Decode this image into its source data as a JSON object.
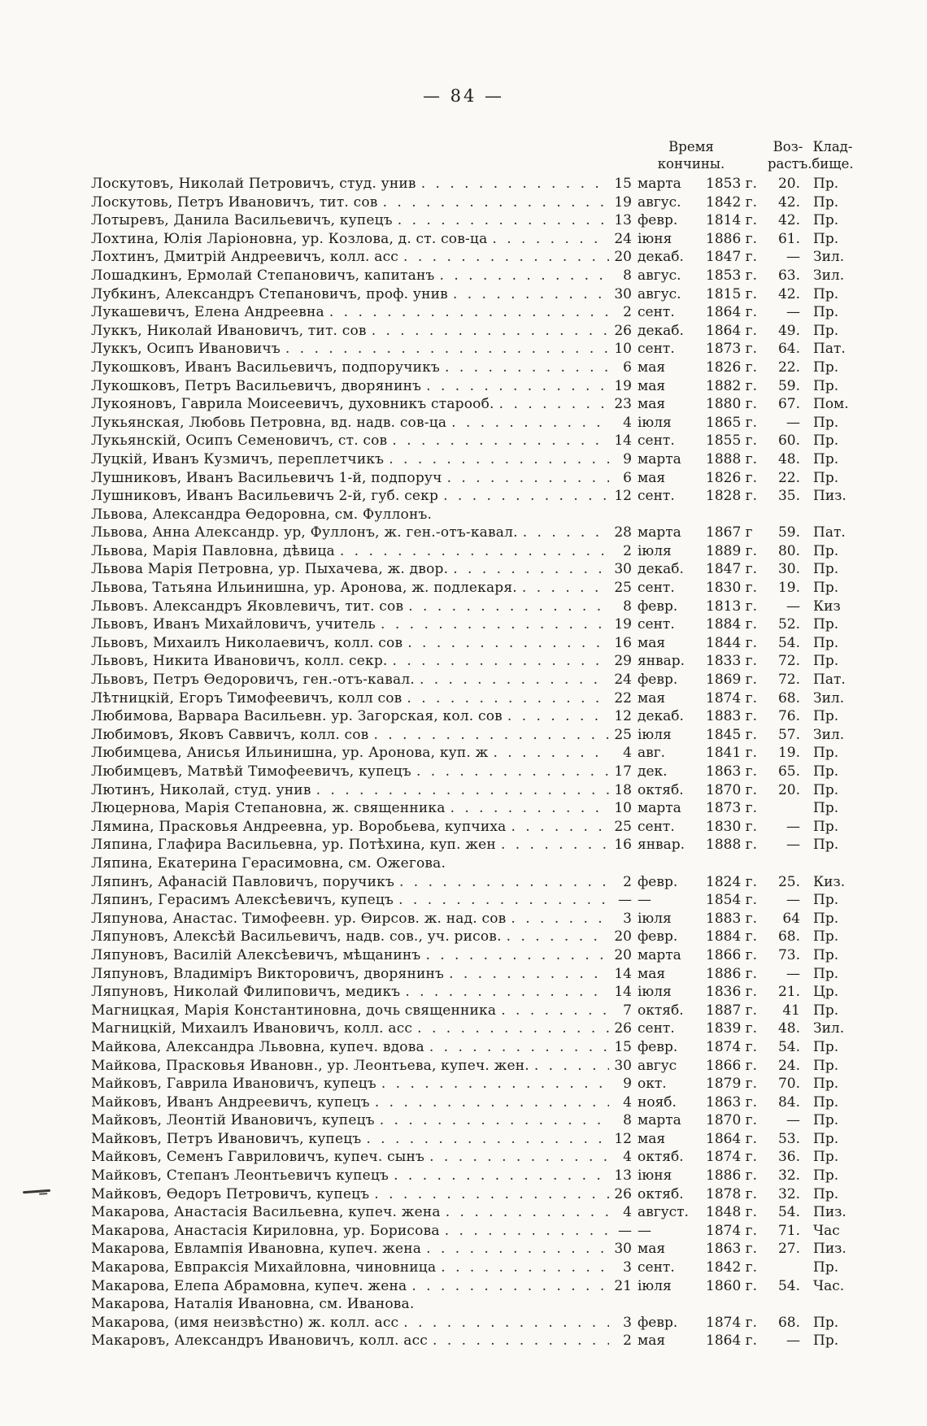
{
  "page": {
    "number_display": "— 84 —"
  },
  "table": {
    "columns": {
      "time_l1": "Время",
      "time_l2": "кончины.",
      "age_l1": "Воз-",
      "age_l2": "растъ.",
      "cem_l1": "Клад-",
      "cem_l2": "бище."
    },
    "rows": [
      {
        "name": "Лоскутовъ, Николай Петровичъ, студ. унив",
        "day": "15",
        "month": "марта",
        "year": "1853 г.",
        "age": "20.",
        "cem": "Пр."
      },
      {
        "name": "Лоскутовь, Петръ Ивановичъ, тит. сов",
        "day": "19",
        "month": "авгус.",
        "year": "1842 г.",
        "age": "42.",
        "cem": "Пр."
      },
      {
        "name": "Лотыревъ, Данила Васильевичъ, купецъ",
        "day": "13",
        "month": "февр.",
        "year": "1814 г.",
        "age": "42.",
        "cem": "Пр."
      },
      {
        "name": "Лохтина, Юлія Ларіоновна, ур. Козлова, д. ст. сов-ца",
        "day": "24",
        "month": "іюня",
        "year": "1886 г.",
        "age": "61.",
        "cem": "Пр."
      },
      {
        "name": "Лохтинъ, Дмитрій Андреевичъ, колл. асс",
        "day": "20",
        "month": "декаб.",
        "year": "1847 г.",
        "age": "—",
        "cem": "Зил."
      },
      {
        "name": "Лошадкинъ, Ермолай Степановичъ, капитанъ",
        "day": "8",
        "month": "авгус.",
        "year": "1853 г.",
        "age": "63.",
        "cem": "Зил."
      },
      {
        "name": "Лубкинъ, Александръ Степановичъ, проф. унив",
        "day": "30",
        "month": "авгус.",
        "year": "1815 г.",
        "age": "42.",
        "cem": "Пр."
      },
      {
        "name": "Лукашевичъ, Елена Андреевна",
        "day": "2",
        "month": "сент.",
        "year": "1864 г.",
        "age": "—",
        "cem": "Пр."
      },
      {
        "name": "Луккъ, Николай Ивановичъ, тит. сов",
        "day": "26",
        "month": "декаб.",
        "year": "1864 г.",
        "age": "49.",
        "cem": "Пр."
      },
      {
        "name": "Луккъ, Осипъ Ивановичъ",
        "day": "10",
        "month": "сент.",
        "year": "1873 г.",
        "age": "64.",
        "cem": "Пат."
      },
      {
        "name": "Лукошковъ, Иванъ Васильевичъ, подпоручикъ",
        "day": "6",
        "month": "мая",
        "year": "1826 г.",
        "age": "22.",
        "cem": "Пр."
      },
      {
        "name": "Лукошковъ, Петръ Васильевичъ, дворянинъ",
        "day": "19",
        "month": "мая",
        "year": "1882 г.",
        "age": "59.",
        "cem": "Пр."
      },
      {
        "name": "Лукояновъ, Гаврила Моисеевичъ, духовникъ старооб.",
        "day": "23",
        "month": "мая",
        "year": "1880 г.",
        "age": "67.",
        "cem": "Пом."
      },
      {
        "name": "Лукьянская, Любовь Петровна, вд. надв. сов-ца",
        "day": "4",
        "month": "іюля",
        "year": "1865 г.",
        "age": "—",
        "cem": "Пр."
      },
      {
        "name": "Лукьянскій, Осипъ Семеновичъ, ст. сов",
        "day": "14",
        "month": "сент.",
        "year": "1855 г.",
        "age": "60.",
        "cem": "Пр."
      },
      {
        "name": "Луцкій, Иванъ Кузмичъ, переплетчикъ",
        "day": "9",
        "month": "марта",
        "year": "1888 г.",
        "age": "48.",
        "cem": "Пр."
      },
      {
        "name": "Лушниковъ, Иванъ Васильевичъ 1-й, подпоруч",
        "day": "6",
        "month": "мая",
        "year": "1826 г.",
        "age": "22.",
        "cem": "Пр."
      },
      {
        "name": "Лушниковъ, Иванъ Васильевичъ 2-й, губ. секр",
        "day": "12",
        "month": "сент.",
        "year": "1828 г.",
        "age": "35.",
        "cem": "Пиз."
      },
      {
        "name": "Львова, Александра Ѳедоровна, см. Фуллонъ.",
        "ref": true
      },
      {
        "name": "Львова, Анна Александр. ур, Фуллонъ, ж. ген.-отъ-кавал.",
        "day": "28",
        "month": "марта",
        "year": "1867 г",
        "age": "59.",
        "cem": "Пат."
      },
      {
        "name": "Львова, Марія Павловна, дѣвица",
        "day": "2",
        "month": "іюля",
        "year": "1889 г.",
        "age": "80.",
        "cem": "Пр."
      },
      {
        "name": "Львова Марія Петровна, ур. Пыхачева, ж. двор.",
        "day": "30",
        "month": "декаб.",
        "year": "1847 г.",
        "age": "30.",
        "cem": "Пр."
      },
      {
        "name": "Львова, Татьяна Ильинишна, ур. Аронова, ж. подлекаря.",
        "day": "25",
        "month": "сент.",
        "year": "1830 г.",
        "age": "19.",
        "cem": "Пр."
      },
      {
        "name": "Львовъ. Александръ Яковлевичъ, тит. сов",
        "day": "8",
        "month": "февр.",
        "year": "1813 г.",
        "age": "—",
        "cem": "Киз"
      },
      {
        "name": "Львовъ, Иванъ Михайловичъ, учитель",
        "day": "19",
        "month": "сент.",
        "year": "1884 г.",
        "age": "52.",
        "cem": "Пр."
      },
      {
        "name": "Львовъ, Михаилъ Николаевичъ, колл. сов",
        "day": "16",
        "month": "мая",
        "year": "1844 г.",
        "age": "54.",
        "cem": "Пр."
      },
      {
        "name": "Львовъ, Никита Ивановичъ, колл. секр.",
        "day": "29",
        "month": "январ.",
        "year": "1833 г.",
        "age": "72.",
        "cem": "Пр."
      },
      {
        "name": "Львовъ, Петръ Ѳедоровичъ, ген.-отъ-кавал.",
        "day": "24",
        "month": "февр.",
        "year": "1869 г.",
        "age": "72.",
        "cem": "Пат."
      },
      {
        "name": "Лѣтницкій, Егоръ Тимофеевичъ, колл сов",
        "day": "22",
        "month": "мая",
        "year": "1874 г.",
        "age": "68.",
        "cem": "Зил."
      },
      {
        "name": "Любимова, Варвара Васильевн. ур. Загорская, кол. сов",
        "day": "12",
        "month": "декаб.",
        "year": "1883 г.",
        "age": "76.",
        "cem": "Пр."
      },
      {
        "name": "Любимовъ, Яковъ Саввичъ, колл. сов",
        "day": "25",
        "month": "іюля",
        "year": "1845 г.",
        "age": "57.",
        "cem": "Зил."
      },
      {
        "name": "Любимцева, Анисья Ильинишна, ур. Аронова, куп. ж",
        "day": "4",
        "month": "авг.",
        "year": "1841 г.",
        "age": "19.",
        "cem": "Пр."
      },
      {
        "name": "Любимцевъ, Матвѣй Тимофеевичъ, купецъ",
        "day": "17",
        "month": "дек.",
        "year": "1863 г.",
        "age": "65.",
        "cem": "Пр."
      },
      {
        "name": "Лютинъ, Николай, студ. унив",
        "day": "18",
        "month": "октяб.",
        "year": "1870 г.",
        "age": "20.",
        "cem": "Пр."
      },
      {
        "name": "Люцернова, Марія Степановна, ж. священника",
        "day": "10",
        "month": "марта",
        "year": "1873 г.",
        "age": "",
        "cem": "Пр."
      },
      {
        "name": "Лямина, Прасковья Андреевна, ур. Воробьева, купчиха",
        "day": "25",
        "month": "сент.",
        "year": "1830 г.",
        "age": "—",
        "cem": "Пр."
      },
      {
        "name": "Ляпина, Глафира Васильевна, ур. Потѣхина, куп. жен",
        "day": "16",
        "month": "январ.",
        "year": "1888 г.",
        "age": "—",
        "cem": "Пр."
      },
      {
        "name": "Ляпина, Екатерина Герасимовна, см. Ожегова.",
        "ref": true
      },
      {
        "name": "Ляпинъ, Афанасій Павловичъ, поручикъ",
        "day": "2",
        "month": "февр.",
        "year": "1824 г.",
        "age": "25.",
        "cem": "Киз."
      },
      {
        "name": "Ляпинъ, Герасимъ Алексѣевичъ, купецъ",
        "day": "—",
        "month": "—",
        "year": "1854 г.",
        "age": "—",
        "cem": "Пр."
      },
      {
        "name": "Ляпунова, Анастас. Тимофеевн. ур. Ѳирсов. ж. над. сов",
        "day": "3",
        "month": "іюля",
        "year": "1883 г.",
        "age": "64",
        "cem": "Пр."
      },
      {
        "name": "Ляпуновъ, Алексѣй Васильевичъ, надв. сов., уч. рисов.",
        "day": "20",
        "month": "февр.",
        "year": "1884 г.",
        "age": "68.",
        "cem": "Пр."
      },
      {
        "name": "Ляпуновъ, Василій Алексѣевичъ, мѣщанинъ",
        "day": "20",
        "month": "марта",
        "year": "1866 г.",
        "age": "73.",
        "cem": "Пр."
      },
      {
        "name": "Ляпуновъ, Владиміръ Викторовичъ, дворянинъ",
        "day": "14",
        "month": "мая",
        "year": "1886 г.",
        "age": "—",
        "cem": "Пр."
      },
      {
        "name": "Ляпуновъ, Николай Филиповичъ, медикъ",
        "day": "14",
        "month": "іюля",
        "year": "1836 г.",
        "age": "21.",
        "cem": "Цр."
      },
      {
        "name": "Магницкая, Марія Константиновна, дочь священника",
        "day": "7",
        "month": "октяб.",
        "year": "1887 г.",
        "age": "41",
        "cem": "Пр."
      },
      {
        "name": "Магницкій, Михаилъ Ивановичъ, колл. асс",
        "day": "26",
        "month": "сент.",
        "year": "1839 г.",
        "age": "48.",
        "cem": "Зил."
      },
      {
        "name": "Майкова, Александра Львовна, купеч. вдова",
        "day": "15",
        "month": "февр.",
        "year": "1874 г.",
        "age": "54.",
        "cem": "Пр."
      },
      {
        "name": "Майкова, Прасковья Ивановн., ур. Леонтьева, купеч. жен.",
        "day": "30",
        "month": "авгус",
        "year": "1866 г.",
        "age": "24.",
        "cem": "Пр."
      },
      {
        "name": "Майковъ, Гаврила Ивановичъ, купецъ",
        "day": "9",
        "month": "окт.",
        "year": "1879 г.",
        "age": "70.",
        "cem": "Пр."
      },
      {
        "name": "Майковъ, Иванъ Андреевичъ, купецъ",
        "day": "4",
        "month": "нояб.",
        "year": "1863 г.",
        "age": "84.",
        "cem": "Пр."
      },
      {
        "name": "Майковъ, Леонтій Ивановичъ, купецъ",
        "day": "8",
        "month": "марта",
        "year": "1870 г.",
        "age": "—",
        "cem": "Пр."
      },
      {
        "name": "Майковъ, Петръ Ивановичъ, купецъ",
        "day": "12",
        "month": "мая",
        "year": "1864 г.",
        "age": "53.",
        "cem": "Пр."
      },
      {
        "name": "Майковъ, Семенъ Гавриловичъ, купеч. сынъ",
        "day": "4",
        "month": "октяб.",
        "year": "1874 г.",
        "age": "36.",
        "cem": "Пр."
      },
      {
        "name": "Майковъ, Степанъ Леонтьевичъ купецъ",
        "day": "13",
        "month": "іюня",
        "year": "1886 г.",
        "age": "32.",
        "cem": "Пр."
      },
      {
        "name": "Майковъ, Ѳедоръ Петровичъ, купецъ",
        "day": "26",
        "month": "октяб.",
        "year": "1878 г.",
        "age": "32.",
        "cem": "Пр."
      },
      {
        "name": "Макарова, Анастасія Васильевна, купеч. жена",
        "day": "4",
        "month": "август.",
        "year": "1848 г.",
        "age": "54.",
        "cem": "Пиз."
      },
      {
        "name": "Макарова, Анастасія Кириловна, ур. Борисова",
        "day": "—",
        "month": "—",
        "year": "1874 г.",
        "age": "71.",
        "cem": "Час"
      },
      {
        "name": "Макарова, Евлампія Ивановна, купеч. жена",
        "day": "30",
        "month": "мая",
        "year": "1863 г.",
        "age": "27.",
        "cem": "Пиз."
      },
      {
        "name": "Макарова, Евпраксія Михайловна, чиновница",
        "day": "3",
        "month": "сент.",
        "year": "1842 г.",
        "age": "",
        "cem": "Пр."
      },
      {
        "name": "Макарова, Елепа Абрамовна, купеч. жена",
        "day": "21",
        "month": "іюля",
        "year": "1860 г.",
        "age": "54.",
        "cem": "Час."
      },
      {
        "name": "Макарова, Наталія Ивановна, см. Иванова.",
        "ref": true
      },
      {
        "name": "Макарова, (имя неизвѣстно) ж. колл. асс",
        "day": "3",
        "month": "февр.",
        "year": "1874 г.",
        "age": "68.",
        "cem": "Пр."
      },
      {
        "name": "Макаровъ, Александръ Ивановичъ, колл. асс",
        "day": "2",
        "month": "мая",
        "year": "1864 г.",
        "age": "—",
        "cem": "Пр."
      }
    ]
  }
}
